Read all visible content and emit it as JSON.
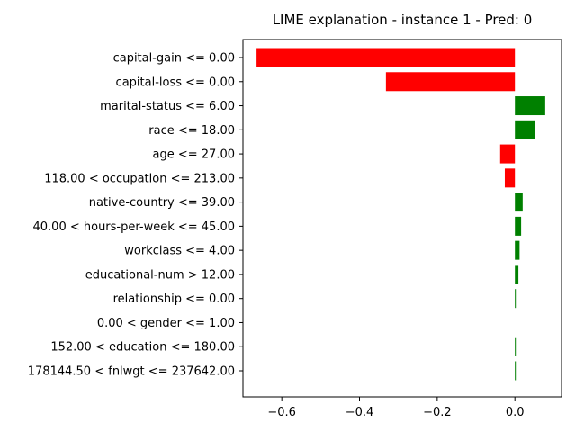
{
  "chart_data": {
    "type": "bar",
    "orientation": "horizontal",
    "title": "LIME explanation - instance 1 - Pred: 0",
    "xlabel": "",
    "ylabel": "",
    "xlim": [
      -0.7,
      0.12
    ],
    "xticks": [
      -0.6,
      -0.4,
      -0.2,
      0.0
    ],
    "xtick_labels": [
      "−0.6",
      "−0.4",
      "−0.2",
      "0.0"
    ],
    "grid": false,
    "legend": "none",
    "positive_color": "#008000",
    "negative_color": "#ff0000",
    "categories": [
      "capital-gain <= 0.00",
      "capital-loss <= 0.00",
      "marital-status <= 6.00",
      "race <= 18.00",
      "age <= 27.00",
      "118.00 < occupation <= 213.00",
      "native-country <= 39.00",
      "40.00 < hours-per-week <= 45.00",
      "workclass <= 4.00",
      "educational-num > 12.00",
      "relationship <= 0.00",
      "0.00 < gender <= 1.00",
      "152.00 < education <= 180.00",
      "178144.50 < fnlwgt <= 237642.00"
    ],
    "values": [
      -0.665,
      -0.332,
      0.078,
      0.051,
      -0.038,
      -0.026,
      0.02,
      0.016,
      0.012,
      0.009,
      0.002,
      0.0,
      0.001,
      0.001
    ]
  }
}
